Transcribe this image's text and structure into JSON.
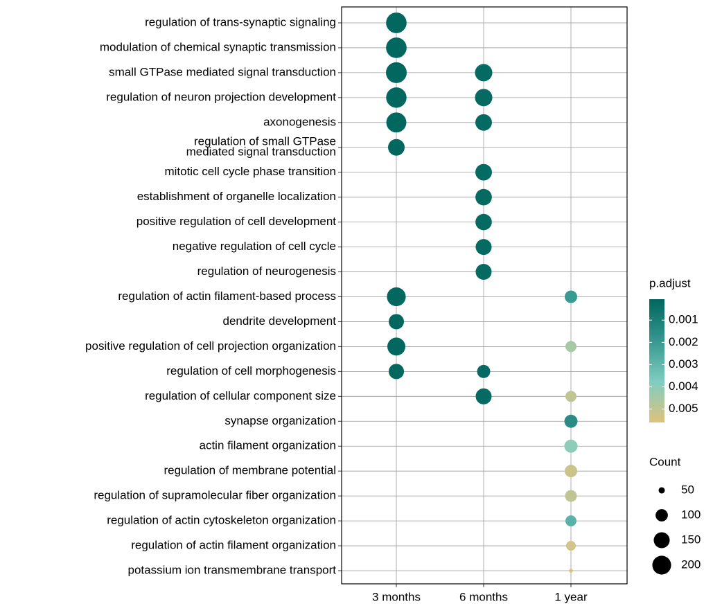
{
  "chart_data": {
    "type": "dot",
    "categories": [
      "regulation of trans-synaptic signaling",
      "modulation of chemical synaptic transmission",
      "small GTPase mediated signal transduction",
      "regulation of neuron projection development",
      "axonogenesis",
      "regulation of small GTPase\nmediated signal transduction",
      "mitotic cell cycle phase transition",
      "establishment of organelle localization",
      "positive regulation of cell development",
      "negative regulation of cell cycle",
      "regulation of neurogenesis",
      "regulation of actin filament-based process",
      "dendrite development",
      "positive regulation of cell projection organization",
      "regulation of cell morphogenesis",
      "regulation of cellular component size",
      "synapse organization",
      "actin filament organization",
      "regulation of membrane potential",
      "regulation of supramolecular fiber organization",
      "regulation of actin cytoskeleton organization",
      "regulation of actin filament organization",
      "potassium ion transmembrane transport"
    ],
    "series": [
      {
        "name": "3 months",
        "values": [
          235,
          235,
          240,
          232,
          225,
          161,
          null,
          null,
          null,
          null,
          null,
          200,
          139,
          185,
          140,
          null,
          null,
          null,
          null,
          null,
          null,
          null,
          null
        ],
        "p_adjust": [
          0.0001,
          0.0001,
          0.0001,
          0.0001,
          0.0001,
          0.0001,
          null,
          null,
          null,
          null,
          null,
          0.0001,
          0.0001,
          0.0001,
          0.0001,
          null,
          null,
          null,
          null,
          null,
          null,
          null,
          null
        ]
      },
      {
        "name": "6 months",
        "values": [
          null,
          null,
          173,
          173,
          160,
          null,
          160,
          158,
          157,
          150,
          150,
          null,
          null,
          null,
          110,
          150,
          null,
          null,
          null,
          null,
          null,
          null,
          null
        ],
        "p_adjust": [
          null,
          null,
          0.0002,
          0.0002,
          0.0002,
          null,
          0.0002,
          0.0002,
          0.0002,
          0.0002,
          0.0002,
          null,
          null,
          null,
          0.0002,
          0.0002,
          null,
          null,
          null,
          null,
          null,
          null,
          null
        ]
      },
      {
        "name": "1 year",
        "values": [
          null,
          null,
          null,
          null,
          null,
          null,
          null,
          null,
          null,
          null,
          null,
          102,
          null,
          86,
          null,
          86,
          110,
          110,
          102,
          94,
          86,
          73,
          42
        ],
        "p_adjust": [
          null,
          null,
          null,
          null,
          null,
          null,
          null,
          null,
          null,
          null,
          null,
          0.002,
          null,
          0.0045,
          null,
          0.005,
          0.0015,
          0.004,
          0.0052,
          0.005,
          0.0028,
          0.0053,
          0.0055
        ]
      }
    ],
    "color_legend": {
      "title": "p.adjust",
      "ticks": [
        0.001,
        0.002,
        0.003,
        0.004,
        0.005
      ]
    },
    "colorlim": [
      6e-05,
      0.0056
    ],
    "colors": [
      "#01665e",
      "#35978f",
      "#80cdc1",
      "#dfc27d"
    ],
    "size_legend": {
      "title": "Count",
      "values": [
        50,
        100,
        150,
        200
      ]
    },
    "sizelim": [
      40,
      240
    ],
    "grid": true
  }
}
